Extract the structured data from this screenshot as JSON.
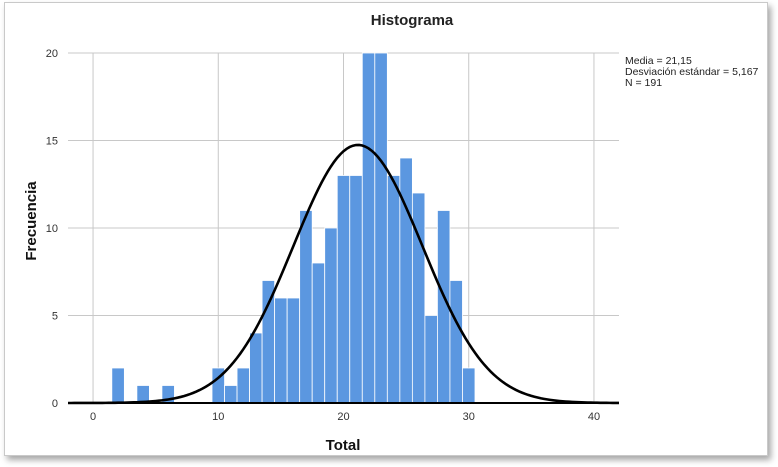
{
  "chart_data": {
    "type": "bar",
    "title": "Histograma",
    "xlabel": "Total",
    "ylabel": "Frecuencia",
    "xlim": [
      -2,
      42
    ],
    "ylim": [
      0,
      20
    ],
    "x_ticks": [
      0,
      10,
      20,
      30,
      40
    ],
    "y_ticks": [
      0,
      5,
      10,
      15,
      20
    ],
    "bin_width": 1,
    "bins": [
      {
        "x": 2,
        "count": 2
      },
      {
        "x": 4,
        "count": 1
      },
      {
        "x": 6,
        "count": 1
      },
      {
        "x": 10,
        "count": 2
      },
      {
        "x": 11,
        "count": 1
      },
      {
        "x": 12,
        "count": 2
      },
      {
        "x": 13,
        "count": 4
      },
      {
        "x": 14,
        "count": 7
      },
      {
        "x": 15,
        "count": 6
      },
      {
        "x": 16,
        "count": 6
      },
      {
        "x": 17,
        "count": 11
      },
      {
        "x": 18,
        "count": 8
      },
      {
        "x": 19,
        "count": 10
      },
      {
        "x": 20,
        "count": 13
      },
      {
        "x": 21,
        "count": 13
      },
      {
        "x": 22,
        "count": 20
      },
      {
        "x": 23,
        "count": 20
      },
      {
        "x": 24,
        "count": 13
      },
      {
        "x": 25,
        "count": 14
      },
      {
        "x": 26,
        "count": 12
      },
      {
        "x": 27,
        "count": 5
      },
      {
        "x": 28,
        "count": 11
      },
      {
        "x": 29,
        "count": 7
      },
      {
        "x": 30,
        "count": 2
      }
    ],
    "normal_curve": {
      "mean": 21.15,
      "sd": 5.167,
      "n": 191
    },
    "stats": {
      "mean": "Media = 21,15",
      "sd": "Desviación estándar = 5,167",
      "n": "N = 191"
    },
    "grid": true,
    "legend_position": "top-right",
    "colors": {
      "bar": "#5b97e0",
      "bar_edge": "#ffffff",
      "curve": "#000000",
      "grid": "#c8c8c8"
    }
  }
}
